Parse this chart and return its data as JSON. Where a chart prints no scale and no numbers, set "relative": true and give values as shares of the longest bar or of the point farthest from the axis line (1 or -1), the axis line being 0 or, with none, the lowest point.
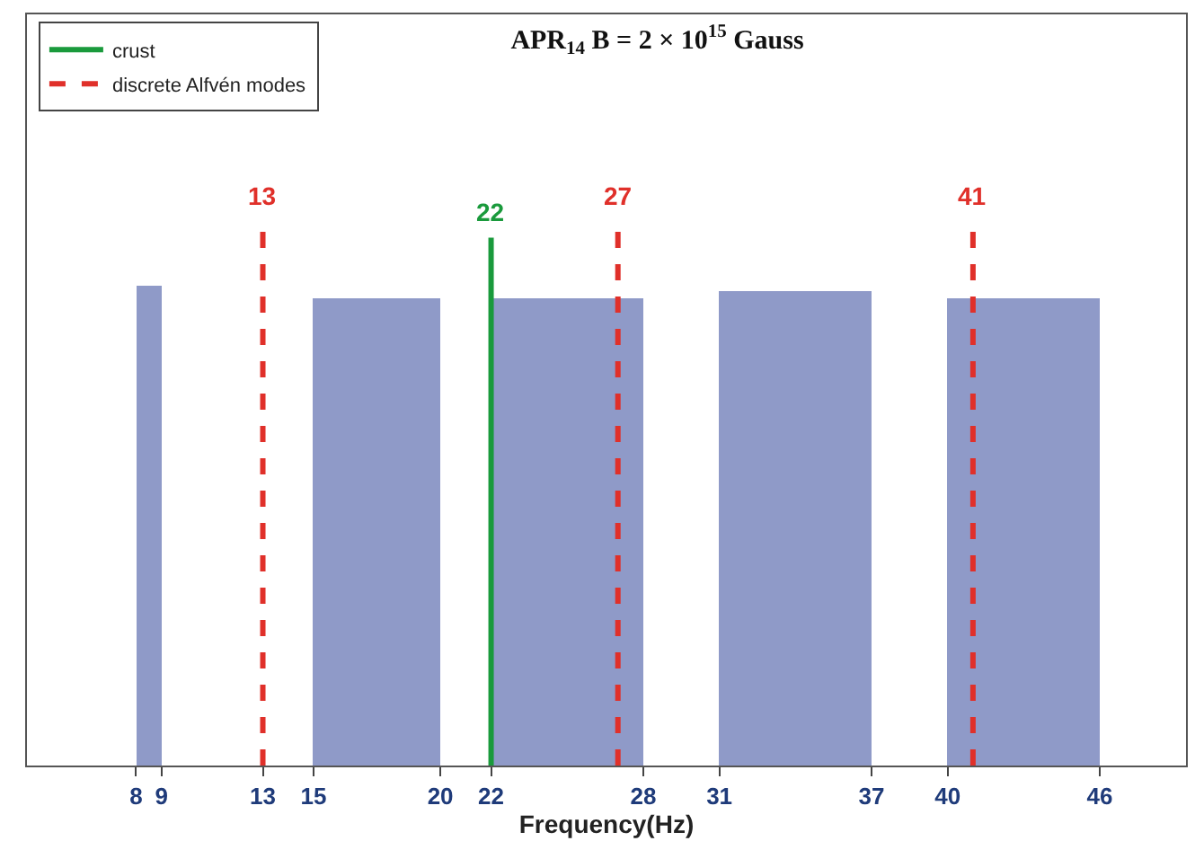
{
  "chart_data": {
    "type": "histogram",
    "title": "APR$_{14}$ B = 2 × 10$^{15}$ Gauss",
    "xlabel": "Frequency(Hz)",
    "relative": true,
    "bins": [
      8,
      9,
      15,
      20,
      22,
      28,
      31,
      37,
      40,
      46
    ],
    "values": [
      0.88,
      0,
      0.86,
      0,
      0.86,
      0,
      0.87,
      0,
      0.86
    ],
    "color": "#8f9ac8",
    "series": [
      {
        "name": "crust",
        "type": "line",
        "color": "#1a9a3c",
        "line_style": "solid",
        "x": [
          22,
          22
        ],
        "values": [
          0,
          0.97
        ]
      },
      {
        "name": "discrete Alfvén modes",
        "type": "line",
        "color": "#e0302a",
        "line_style": "dashed",
        "x": [
          13,
          13,
          null,
          27,
          27,
          null,
          41,
          41,
          null
        ],
        "values": [
          0,
          1,
          null,
          0,
          1,
          null,
          0,
          1,
          null
        ]
      }
    ],
    "annotations": [
      {
        "text": "13",
        "x": 13,
        "y": 1
      },
      {
        "text": "22",
        "x": 22,
        "y": 0.97
      },
      {
        "text": "27",
        "x": 27,
        "y": 1
      },
      {
        "text": "41",
        "x": 41,
        "y": 1
      }
    ],
    "xlim": [
      3.7,
      49.4
    ],
    "xticks": [
      8,
      9,
      13,
      15,
      20,
      22,
      28,
      31,
      37,
      40,
      46
    ],
    "grid": false,
    "legend": "top left",
    "marker": "none"
  }
}
